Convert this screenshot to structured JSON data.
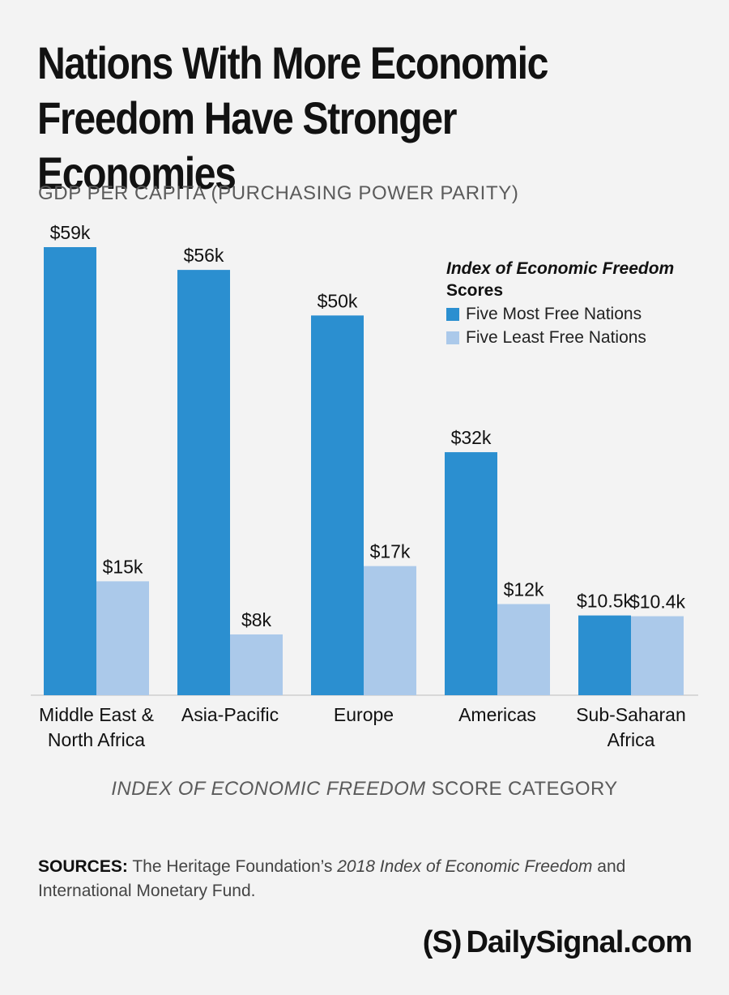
{
  "title_line1": "Nations With More Economic",
  "title_line2": "Freedom Have Stronger Economies",
  "sources": {
    "lead": "SOURCES:",
    "text1": " The Heritage Foundation’s ",
    "italic": "2018 Index of Economic Freedom",
    "text2": " and International Monetary Fund."
  },
  "logo": {
    "mark": "(S)",
    "text": "DailySignal.com"
  },
  "colors": {
    "most_free": "#2b8fd0",
    "least_free": "#abc9ea",
    "background": "#f3f3f3"
  },
  "chart_data": {
    "type": "bar",
    "title": "GDP PER CAPITA (PURCHASING POWER PARITY)",
    "xlabel_italic": "INDEX OF ECONOMIC FREEDOM",
    "xlabel_rest": " SCORE CATEGORY",
    "ylabel": "",
    "ylim": [
      0,
      59
    ],
    "legend_title_italic": "Index of Economic Freedom",
    "legend_title_rest": " Scores",
    "categories": [
      [
        "Middle East &",
        "North Africa"
      ],
      [
        "Asia-Pacific"
      ],
      [
        "Europe"
      ],
      [
        "Americas"
      ],
      [
        "Sub-Saharan",
        "Africa"
      ]
    ],
    "series": [
      {
        "name": "Five Most Free Nations",
        "values": [
          59,
          56,
          50,
          32,
          10.5
        ],
        "labels": [
          "$59k",
          "$56k",
          "$50k",
          "$32k",
          "$10.5k"
        ]
      },
      {
        "name": "Five Least Free Nations",
        "values": [
          15,
          8,
          17,
          12,
          10.4
        ],
        "labels": [
          "$15k",
          "$8k",
          "$17k",
          "$12k",
          "$10.4k"
        ]
      }
    ]
  }
}
